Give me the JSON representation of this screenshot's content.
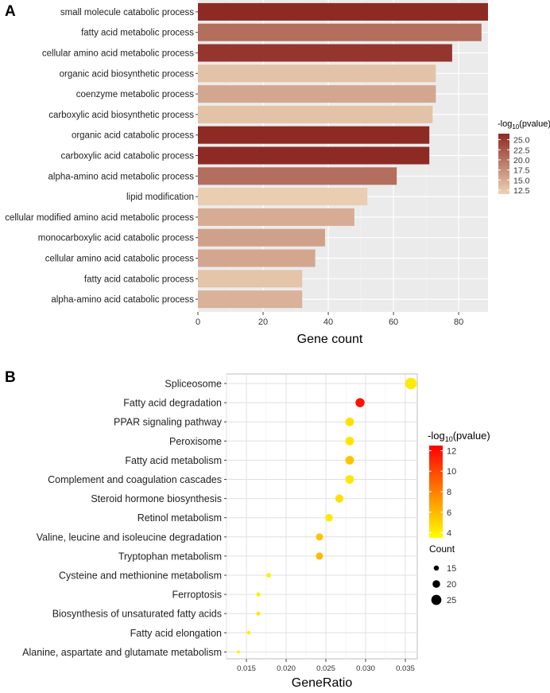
{
  "panel_a": {
    "letter": "A",
    "legend_title_prefix": "-log",
    "legend_title_sub": "10",
    "legend_title_suffix": "(pvalue)",
    "color_low": "#ecd4b6",
    "color_high": "#8e2a24"
  },
  "panel_b": {
    "letter": "B",
    "legend_title_prefix": "-log",
    "legend_title_sub": "10",
    "legend_title_suffix": "(pvalue)",
    "size_legend_title": "Count",
    "color_low": "#ffff00",
    "color_high": "#ff0000"
  },
  "chart_data": [
    {
      "type": "bar",
      "orientation": "horizontal",
      "xlabel": "Gene count",
      "xlim": [
        0,
        89
      ],
      "xticks": [
        0,
        20,
        40,
        60,
        80
      ],
      "grid": true,
      "legend": {
        "title": "-log10(pvalue)",
        "ticks": [
          25.0,
          22.5,
          20.0,
          17.5,
          15.0,
          12.5
        ],
        "range": [
          11.5,
          26.5
        ],
        "placement": "right"
      },
      "categories": [
        "small molecule catabolic process",
        "fatty acid metabolic process",
        "cellular amino acid metabolic process",
        "organic acid biosynthetic process",
        "coenzyme metabolic process",
        "carboxylic acid biosynthetic process",
        "organic acid catabolic process",
        "carboxylic acid catabolic process",
        "alpha-amino acid metabolic process",
        "lipid modification",
        "cellular modified amino acid metabolic process",
        "monocarboxylic acid catabolic process",
        "cellular amino acid catabolic process",
        "fatty acid catabolic process",
        "alpha-amino acid catabolic process"
      ],
      "values": [
        89,
        87,
        78,
        73,
        73,
        72,
        71,
        71,
        61,
        52,
        48,
        39,
        36,
        32,
        32
      ],
      "color_values": [
        26.5,
        20.5,
        25.5,
        13.0,
        15.5,
        13.0,
        26.5,
        26.5,
        20.5,
        12.0,
        15.0,
        16.0,
        15.5,
        12.8,
        14.5
      ]
    },
    {
      "type": "scatter",
      "xlabel": "GeneRatio",
      "xlim": [
        0.0125,
        0.0365
      ],
      "xticks": [
        0.015,
        0.02,
        0.025,
        0.03,
        0.035
      ],
      "xtick_labels": [
        "0.015",
        "0.020",
        "0.025",
        "0.030",
        "0.035"
      ],
      "grid": true,
      "legend": {
        "color_title": "-log10(pvalue)",
        "color_ticks": [
          12,
          10,
          8,
          6,
          4
        ],
        "color_range": [
          3.5,
          12.5
        ],
        "size_title": "Count",
        "size_ticks": [
          15,
          20,
          25
        ],
        "placement": "right"
      },
      "categories": [
        "Spliceosome",
        "Fatty acid degradation",
        "PPAR signaling pathway",
        "Peroxisome",
        "Fatty acid metabolism",
        "Complement and coagulation cascades",
        "Steroid hormone biosynthesis",
        "Retinol metabolism",
        "Valine, leucine and isoleucine degradation",
        "Tryptophan metabolism",
        "Cysteine and methionine metabolism",
        "Ferroptosis",
        "Biosynthesis of unsaturated fatty acids",
        "Fatty acid elongation",
        "Alanine, aspartate and glutamate metabolism"
      ],
      "x": [
        0.0357,
        0.0293,
        0.028,
        0.028,
        0.028,
        0.028,
        0.0267,
        0.0254,
        0.0242,
        0.0242,
        0.0178,
        0.0165,
        0.0165,
        0.0153,
        0.014
      ],
      "size": [
        28,
        23,
        22,
        22,
        22,
        22,
        21,
        20,
        19,
        19,
        14,
        13,
        13,
        12,
        11
      ],
      "color": [
        4.5,
        12,
        5,
        4.8,
        6.5,
        4.6,
        5,
        4.5,
        6.5,
        7,
        4.2,
        4.3,
        4.5,
        4.3,
        4.0
      ]
    }
  ]
}
